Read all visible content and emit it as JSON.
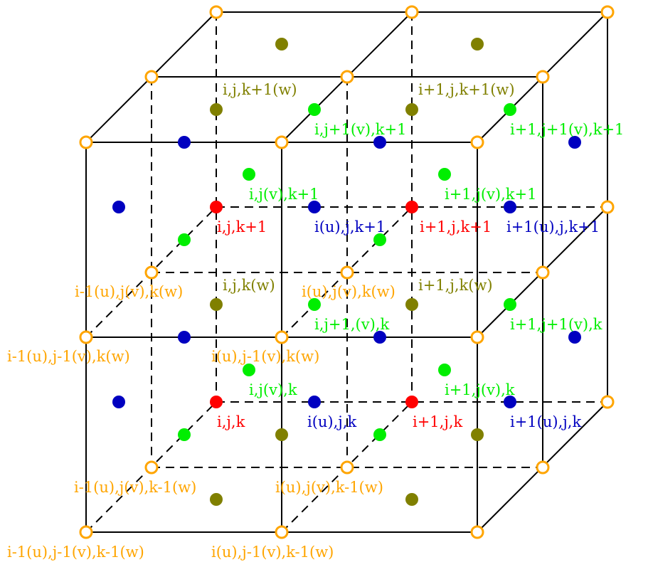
{
  "colors": {
    "corner": "#FFA500",
    "cell_center": "#FF0000",
    "u_face": "#0000C0",
    "v_face": "#00EE00",
    "w_face": "#808000"
  },
  "legend_meaning": {
    "orange_open_circle": "grid node",
    "red_dot": "cell center",
    "blue_dot": "u face",
    "green_dot": "v face",
    "olive_dot": "w face"
  },
  "labels": {
    "red": [
      "i,j,k+1",
      "i+1,j,k+1",
      "i,j,k",
      "i+1,j,k"
    ],
    "blue": [
      "i(u),j,k+1",
      "i+1(u),j,k+1",
      "i(u),j,k",
      "i+1(u),j,k"
    ],
    "green": [
      "i,j+1(v),k+1",
      "i+1,j+1(v),k+1",
      "i,j(v),k+1",
      "i+1,j(v),k+1",
      "i,j+1,(v),k",
      "i+1,j+1(v),k",
      "i,j(v),k",
      "i+1,j(v),k"
    ],
    "olive": [
      "i,j,k+1(w)",
      "i+1,j,k+1(w)",
      "i,j,k(w)",
      "i+1,j,k(w)"
    ],
    "orange": [
      "i-1(u),j(v),k(w)",
      "i(u),j(v),k(w)",
      "i-1(u),j-1(v),k(w)",
      "i(u),j-1(v),k(w)",
      "i-1(u),j(v),k-1(w)",
      "i(u),j(v),k-1(w)",
      "i-1(u),j-1(v),k-1(w)",
      "i(u),j-1(v),k-1(w)"
    ]
  }
}
